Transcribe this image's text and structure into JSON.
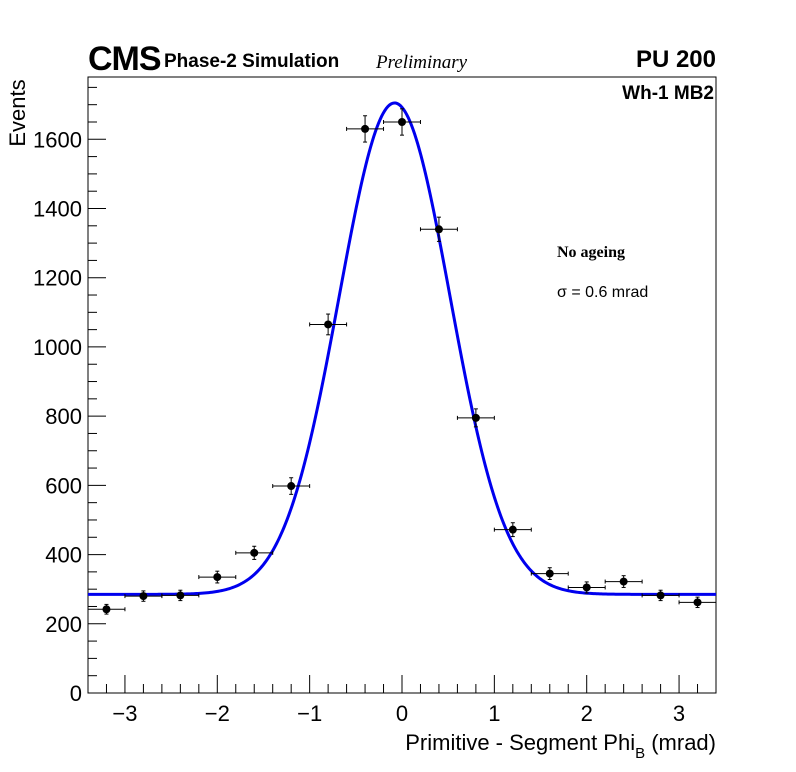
{
  "header": {
    "experiment": "CMS",
    "detector_phase": "Phase-2 Simulation",
    "status": "Preliminary",
    "pileup": "PU 200"
  },
  "annotations": {
    "chamber": "Wh-1 MB2",
    "condition": "No ageing",
    "sigma": "σ = 0.6 mrad"
  },
  "axes": {
    "xlabel_main": "Primitive - Segment Phi",
    "xlabel_sub": "B",
    "xlabel_unit": " (mrad)",
    "ylabel": "Events"
  },
  "colors": {
    "fit": "#0000ee",
    "points": "#000000",
    "frame": "#000000"
  },
  "chart_data": {
    "type": "scatter",
    "title": "",
    "xlabel": "Primitive - Segment Phi_B (mrad)",
    "ylabel": "Events",
    "xlim": [
      -3.4,
      3.4
    ],
    "ylim": [
      0,
      1780
    ],
    "x_ticks": [
      -3,
      -2,
      -1,
      0,
      1,
      2,
      3
    ],
    "x_tick_labels": [
      "−3",
      "−2",
      "−1",
      "0",
      "1",
      "2",
      "3"
    ],
    "y_ticks": [
      0,
      200,
      400,
      600,
      800,
      1000,
      1200,
      1400,
      1600
    ],
    "y_tick_labels": [
      "0",
      "200",
      "400",
      "600",
      "800",
      "1000",
      "1200",
      "1400",
      "1600"
    ],
    "series": [
      {
        "name": "Simulation",
        "x_err": 0.2,
        "x": [
          -3.2,
          -2.8,
          -2.4,
          -2.0,
          -1.6,
          -1.2,
          -0.8,
          -0.4,
          0.0,
          0.4,
          0.8,
          1.2,
          1.6,
          2.0,
          2.4,
          2.8,
          3.2
        ],
        "y": [
          242,
          280,
          282,
          335,
          405,
          598,
          1065,
          1630,
          1650,
          1340,
          795,
          472,
          345,
          305,
          322,
          282,
          262
        ],
        "y_err": [
          14,
          15,
          15,
          17,
          19,
          24,
          30,
          38,
          38,
          35,
          26,
          20,
          17,
          16,
          17,
          15,
          15
        ]
      }
    ],
    "fit": {
      "name": "Gaussian + constant",
      "baseline": 285,
      "amplitude": 1420,
      "mean": -0.08,
      "sigma": 0.6
    }
  }
}
